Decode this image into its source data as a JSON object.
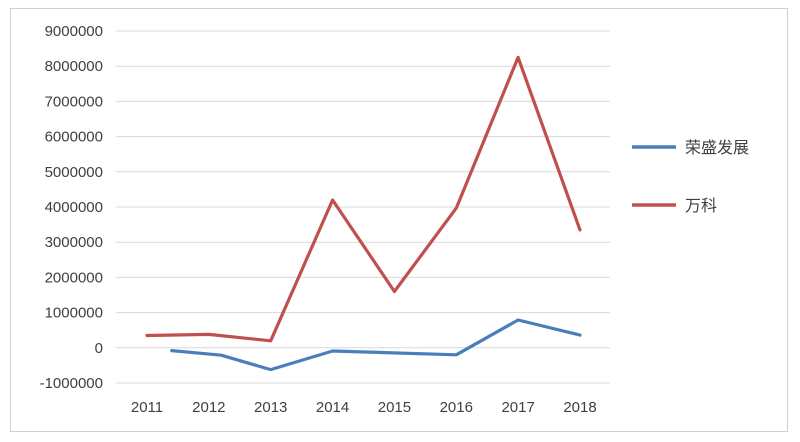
{
  "chart_data": {
    "type": "line",
    "title": "",
    "xlabel": "",
    "ylabel": "",
    "categories": [
      "2011",
      "2012",
      "2013",
      "2014",
      "2015",
      "2016",
      "2017",
      "2018"
    ],
    "ylim": [
      -1000000,
      9000000
    ],
    "y_ticks": [
      9000000,
      8000000,
      7000000,
      6000000,
      5000000,
      4000000,
      3000000,
      2000000,
      1000000,
      0,
      -1000000
    ],
    "y_tick_labels": [
      "9000000",
      "8000000",
      "7000000",
      "6000000",
      "5000000",
      "4000000",
      "3000000",
      "2000000",
      "1000000",
      "0",
      "-1000000"
    ],
    "grid": true,
    "legend_position": "right",
    "series": [
      {
        "name": "荣盛发展",
        "color": "#4a7ebb",
        "x": [
          2011.4,
          2012.2,
          2013,
          2014,
          2016,
          2017,
          2018
        ],
        "values": [
          -80000,
          -210000,
          -620000,
          -90000,
          -200000,
          790000,
          360000
        ]
      },
      {
        "name": "万科",
        "color": "#c0504d",
        "x": [
          2011,
          2012,
          2013,
          2014,
          2015,
          2016,
          2017,
          2018
        ],
        "values": [
          350000,
          380000,
          200000,
          4200000,
          1600000,
          3970000,
          8250000,
          3350000
        ]
      }
    ]
  }
}
